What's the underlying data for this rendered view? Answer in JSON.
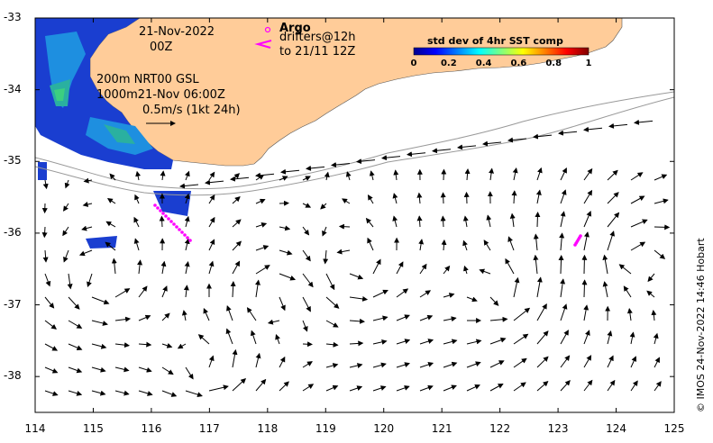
{
  "map": {
    "lon_ticks": [
      "114",
      "115",
      "116",
      "117",
      "118",
      "119",
      "120",
      "121",
      "122",
      "123",
      "124",
      "125"
    ],
    "lat_ticks": [
      "-33",
      "-34",
      "-35",
      "-36",
      "-37",
      "-38"
    ],
    "lon_range": [
      114,
      125
    ],
    "lat_range": [
      -38.5,
      -33
    ],
    "land_color": "#ffcc99",
    "drifter_color": "#ff00ff"
  },
  "labels": {
    "date": "21-Nov-2022",
    "time": "00Z",
    "product_1": "200m  NRT00 GSL",
    "product_2": "1000m21-Nov 06:00Z",
    "scale_text": "0.5m/s (1kt 24h)",
    "argo": "Argo",
    "drifters": "drifters@12h",
    "drifters_to": "to 21/11 12Z"
  },
  "colorbar": {
    "title": "std dev of 4hr SST comp",
    "ticks": [
      "0",
      "0.2",
      "0.4",
      "0.6",
      "0.8",
      "1"
    ],
    "range": [
      0,
      1
    ]
  },
  "credit": "© IMOS 24-Nov-2022 14:46 Hobart"
}
